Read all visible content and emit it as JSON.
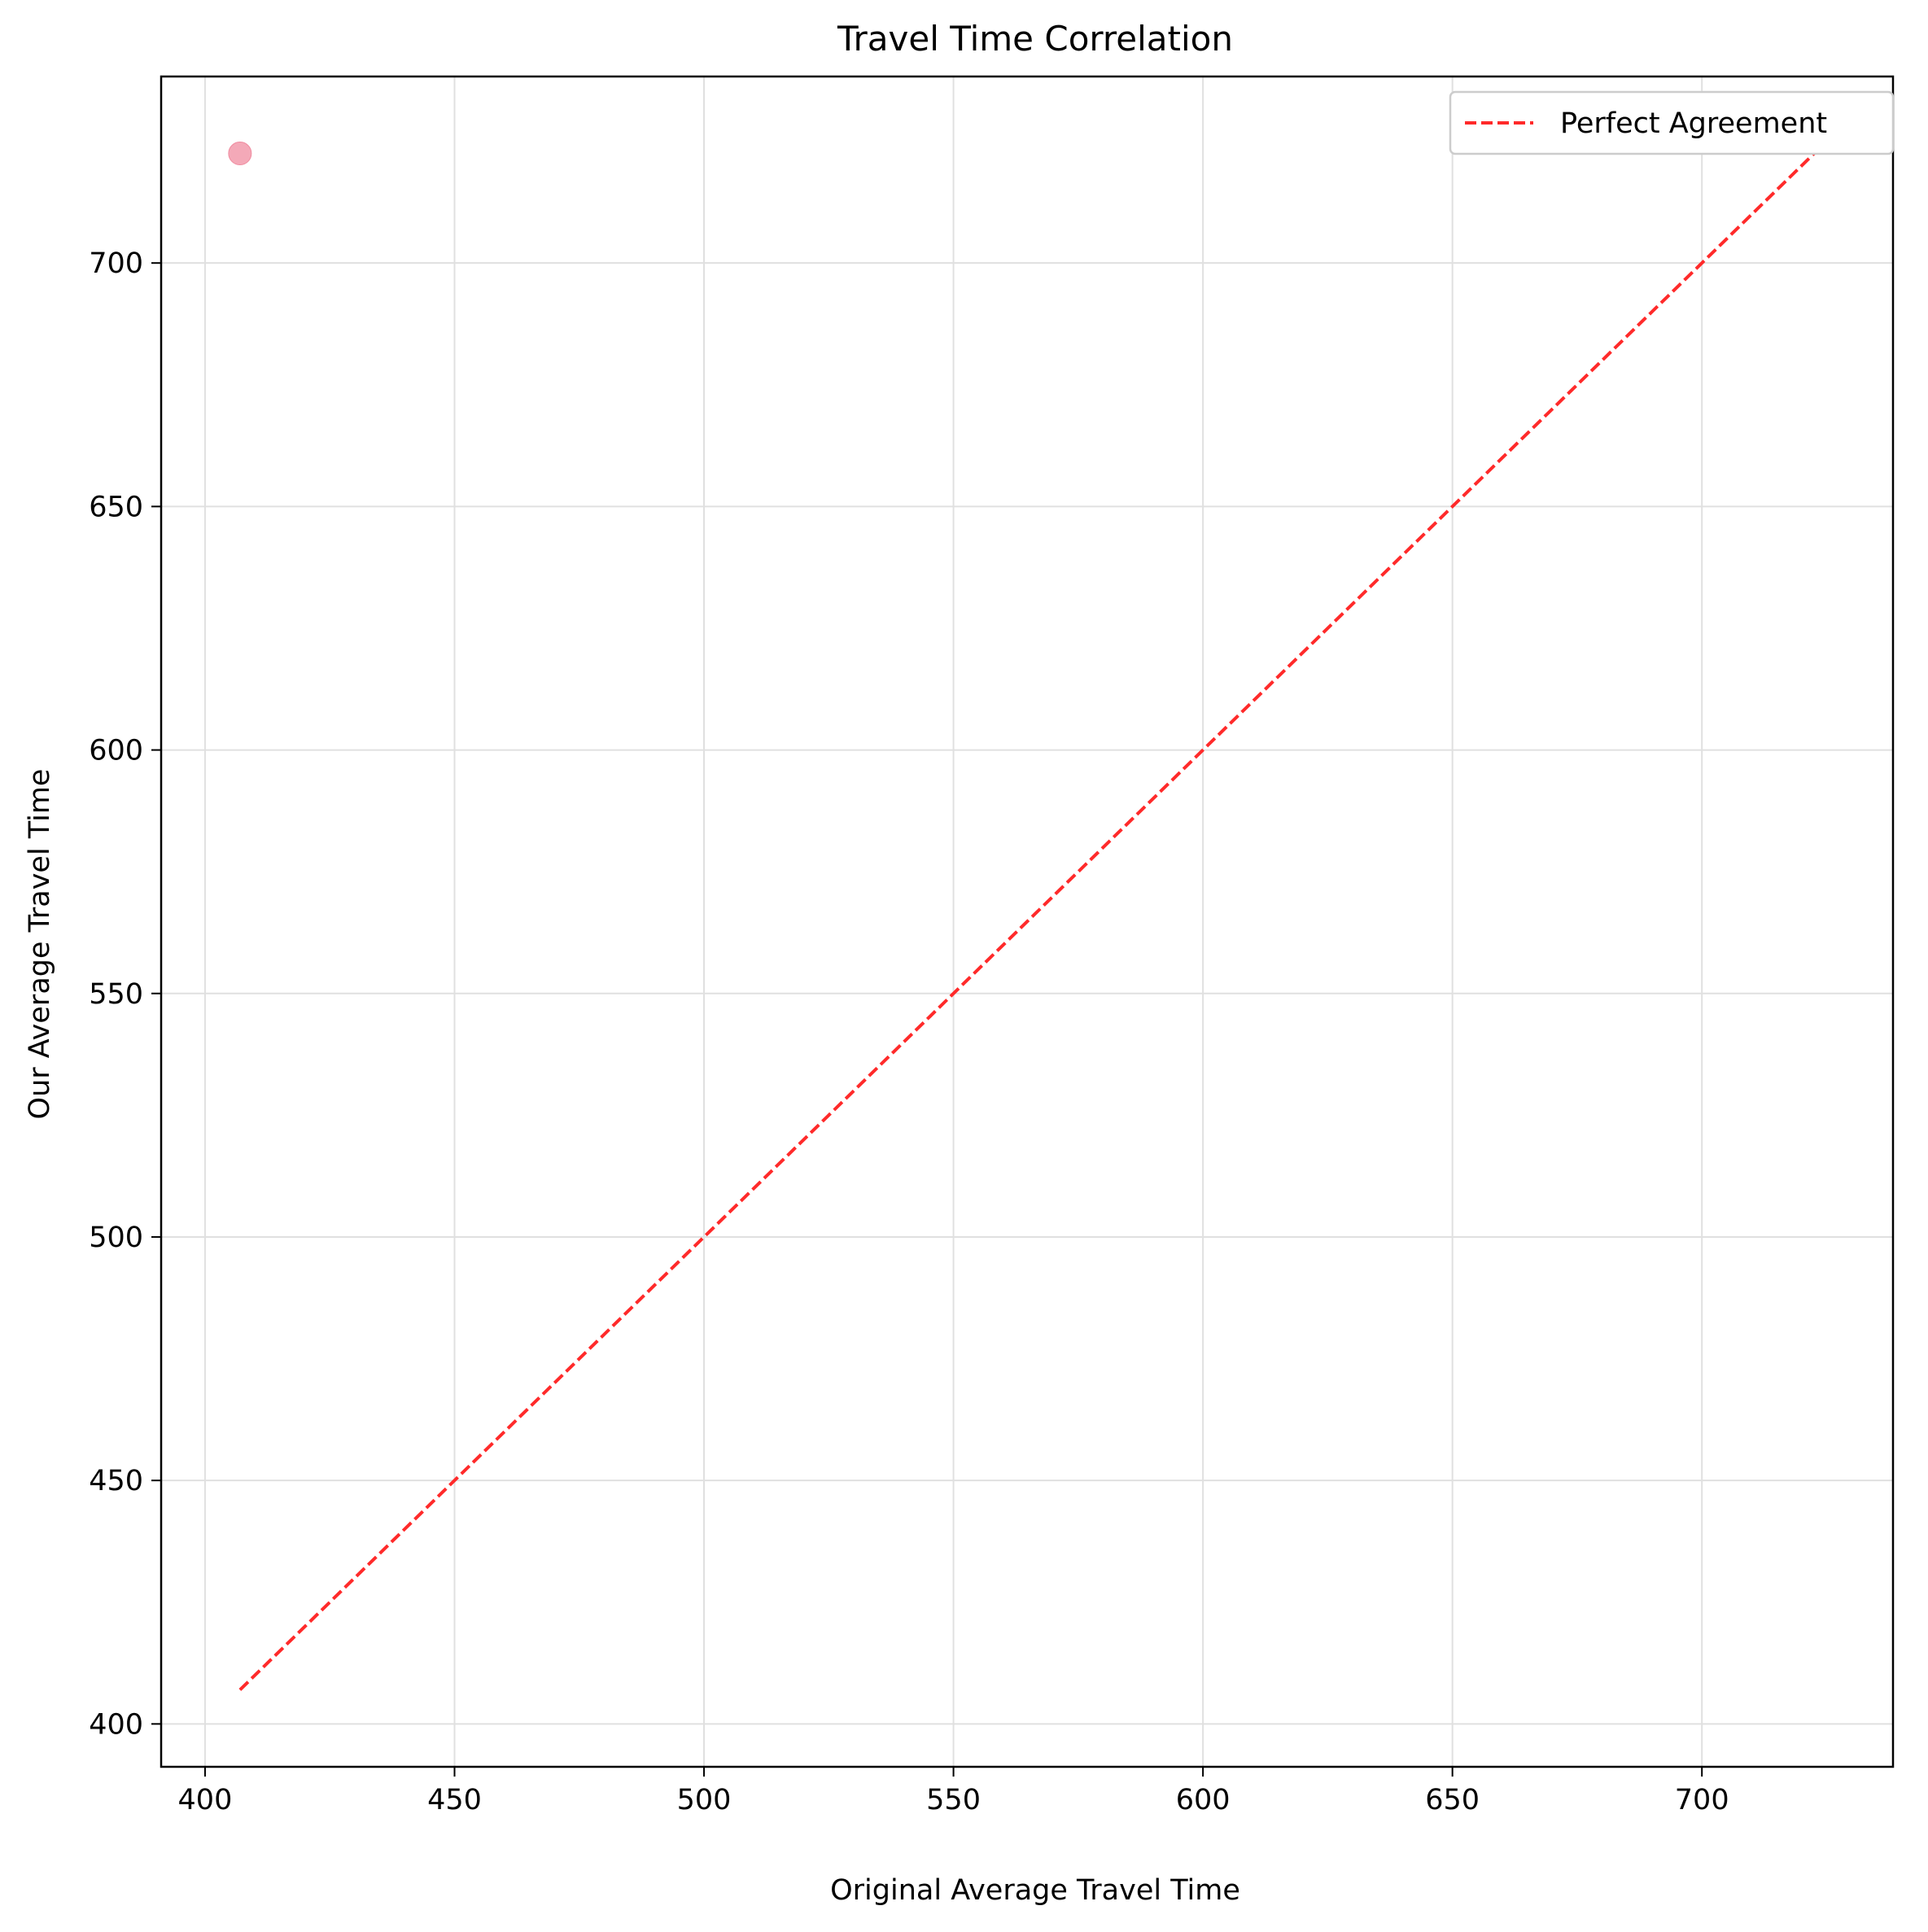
{
  "chart_data": {
    "type": "scatter",
    "title": "Travel Time Correlation",
    "xlabel": "Original Average Travel Time",
    "ylabel": "Our Average Travel Time",
    "xlim": [
      391.2,
      738.3
    ],
    "ylim": [
      391.2,
      738.3
    ],
    "x_ticks": [
      400,
      450,
      500,
      550,
      600,
      650,
      700
    ],
    "y_ticks": [
      400,
      450,
      500,
      550,
      600,
      650,
      700
    ],
    "grid": true,
    "legend_position": "top-right",
    "points": [
      {
        "x": 407,
        "y": 722.5
      }
    ],
    "reference_line": {
      "name": "Perfect Agreement",
      "x": [
        407,
        722.5
      ],
      "y": [
        407,
        722.5
      ],
      "style": "dashed"
    },
    "colors": {
      "points": "#f08ca0",
      "reference_line": "#ff2a2a",
      "grid": "#e0e0e0"
    }
  }
}
